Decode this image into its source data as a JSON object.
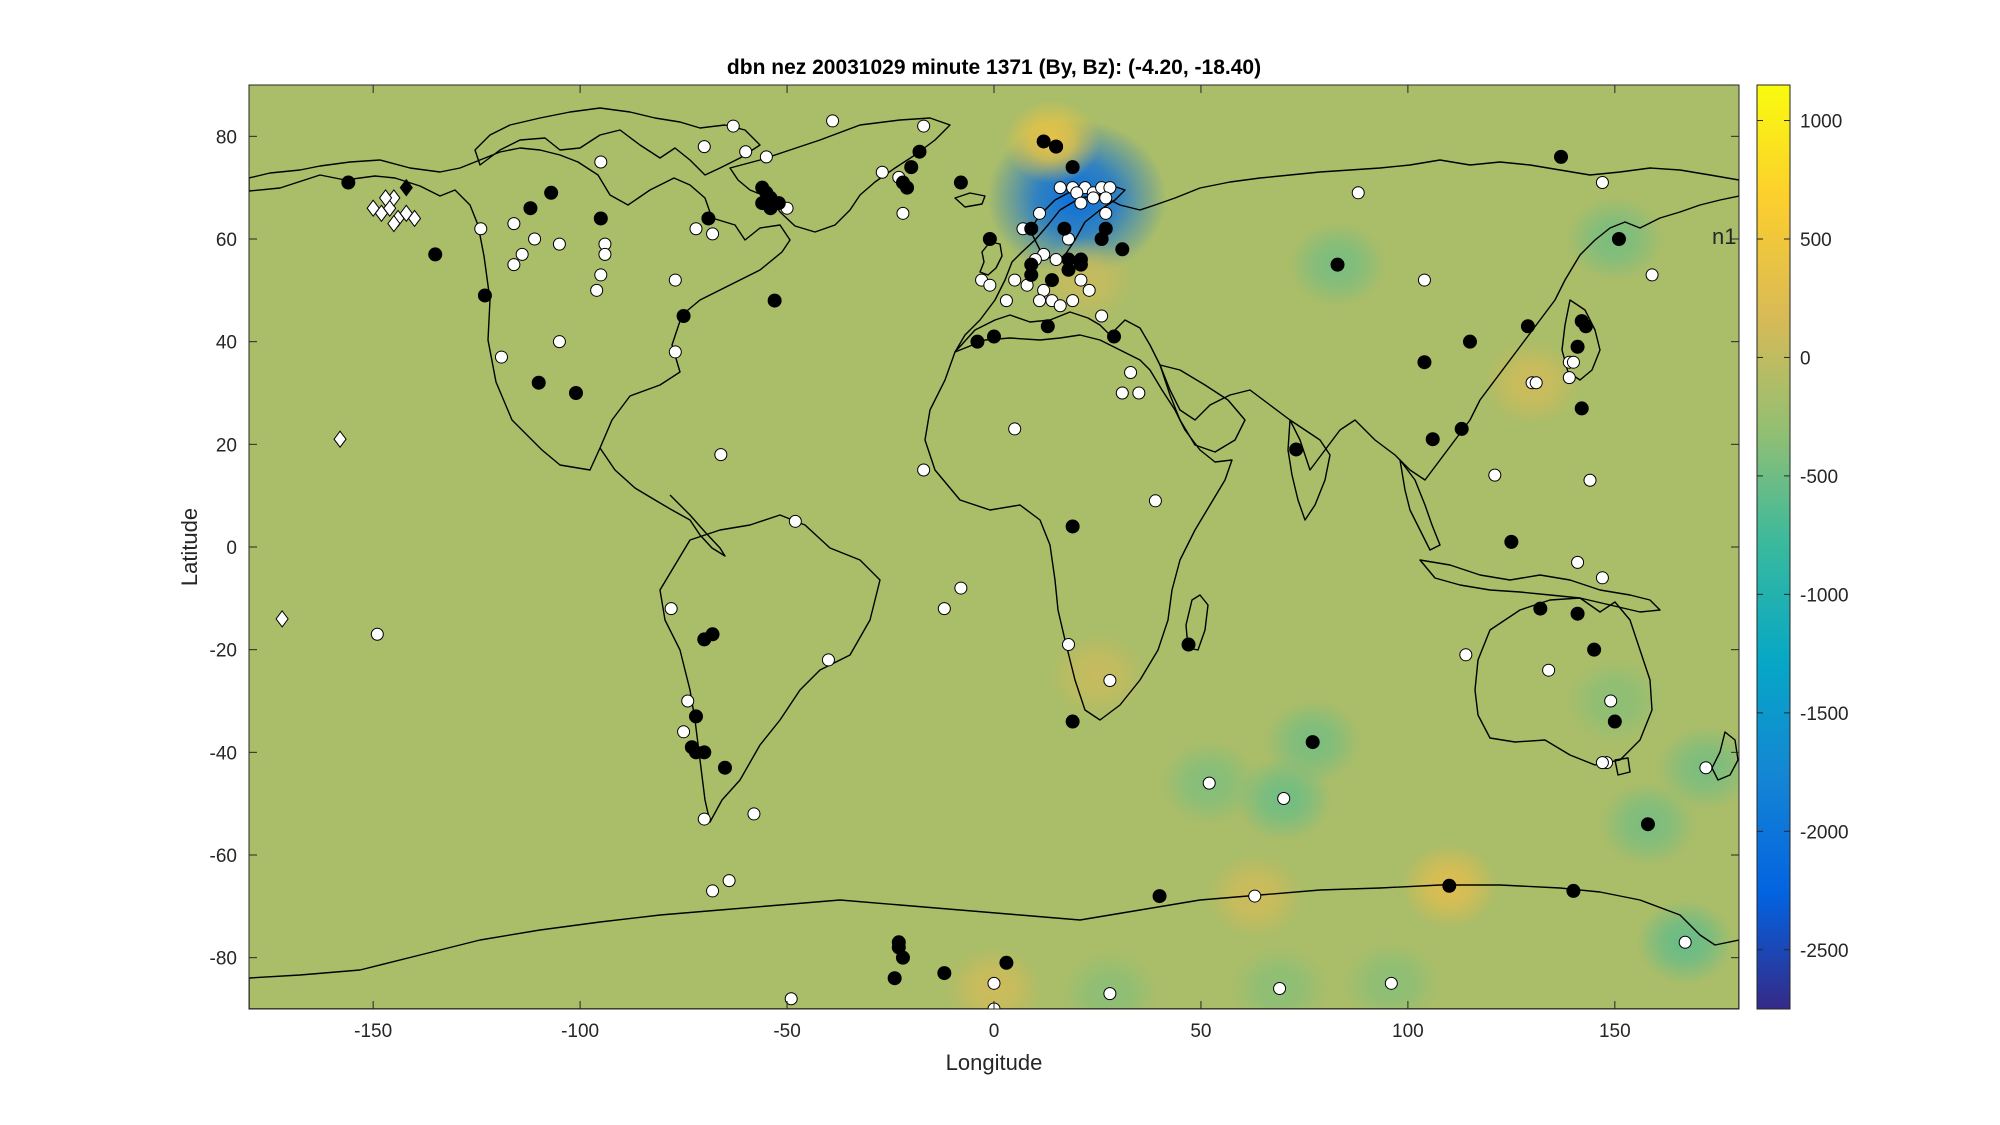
{
  "chart_data": {
    "type": "heatmap",
    "title": "dbn nez 20031029 minute 1371    (By, Bz): (-4.20, -18.40)",
    "xlabel": "Longitude",
    "ylabel": "Latitude",
    "xlim": [
      -180,
      180
    ],
    "ylim": [
      -90,
      90
    ],
    "xticks": [
      -150,
      -100,
      -50,
      0,
      50,
      100,
      150
    ],
    "yticks": [
      80,
      60,
      40,
      20,
      0,
      -20,
      -40,
      -60,
      -80
    ],
    "colorbar": {
      "limits": [
        -2750,
        1150
      ],
      "ticks": [
        1000,
        500,
        0,
        -500,
        -1000,
        -1500,
        -2000,
        -2500
      ],
      "colormap": "parula",
      "background_value": -150
    },
    "annotation": "n1",
    "field_anomalies": [
      {
        "lon": 20,
        "lat": 68,
        "value": -2100
      },
      {
        "lon": 14,
        "lat": 79,
        "value": 400
      },
      {
        "lon": 22,
        "lat": 52,
        "value": 50
      },
      {
        "lon": 83,
        "lat": 55,
        "value": -450
      },
      {
        "lon": 150,
        "lat": 60,
        "value": -450
      },
      {
        "lon": 130,
        "lat": 32,
        "value": 100
      },
      {
        "lon": 52,
        "lat": -46,
        "value": -400
      },
      {
        "lon": 70,
        "lat": -49,
        "value": -500
      },
      {
        "lon": 77,
        "lat": -38,
        "value": -450
      },
      {
        "lon": 158,
        "lat": -54,
        "value": -450
      },
      {
        "lon": 110,
        "lat": -66,
        "value": 250
      },
      {
        "lon": 63,
        "lat": -68,
        "value": 100
      },
      {
        "lon": 167,
        "lat": -77,
        "value": -550
      },
      {
        "lon": 172,
        "lat": -43,
        "value": -450
      },
      {
        "lon": 28,
        "lat": -87,
        "value": -350
      },
      {
        "lon": 69,
        "lat": -86,
        "value": -350
      },
      {
        "lon": 96,
        "lat": -85,
        "value": -350
      },
      {
        "lon": 0,
        "lat": -86,
        "value": 100
      },
      {
        "lon": 150,
        "lat": -30,
        "value": -350
      },
      {
        "lon": 25,
        "lat": -25,
        "value": 50
      }
    ],
    "stations_white": [
      [
        -63,
        82
      ],
      [
        -39,
        83
      ],
      [
        -70,
        78
      ],
      [
        -60,
        77
      ],
      [
        -95,
        75
      ],
      [
        -55,
        76
      ],
      [
        -17,
        82
      ],
      [
        -27,
        73
      ],
      [
        -23,
        72
      ],
      [
        -50,
        66
      ],
      [
        -22,
        65
      ],
      [
        -116,
        63
      ],
      [
        -124,
        62
      ],
      [
        -111,
        60
      ],
      [
        -105,
        59
      ],
      [
        -94,
        59
      ],
      [
        -94,
        57
      ],
      [
        -114,
        57
      ],
      [
        -116,
        55
      ],
      [
        -95,
        53
      ],
      [
        -77,
        52
      ],
      [
        -96,
        50
      ],
      [
        -68,
        61
      ],
      [
        -72,
        62
      ],
      [
        -119,
        37
      ],
      [
        -105,
        40
      ],
      [
        -77,
        38
      ],
      [
        -66,
        18
      ],
      [
        -48,
        5
      ],
      [
        -17,
        15
      ],
      [
        -8,
        -8
      ],
      [
        -12,
        -12
      ],
      [
        -78,
        -12
      ],
      [
        -40,
        -22
      ],
      [
        -74,
        -30
      ],
      [
        -75,
        -36
      ],
      [
        -70,
        -53
      ],
      [
        -58,
        -52
      ],
      [
        -68,
        -67
      ],
      [
        -64,
        -65
      ],
      [
        -49,
        -88
      ],
      [
        -149,
        -17
      ],
      [
        16,
        70
      ],
      [
        19,
        70
      ],
      [
        22,
        70
      ],
      [
        24,
        69
      ],
      [
        26,
        70
      ],
      [
        28,
        70
      ],
      [
        20,
        69
      ],
      [
        24,
        68
      ],
      [
        27,
        68
      ],
      [
        21,
        67
      ],
      [
        27,
        65
      ],
      [
        11,
        65
      ],
      [
        7,
        62
      ],
      [
        12,
        57
      ],
      [
        15,
        56
      ],
      [
        10,
        56
      ],
      [
        18,
        60
      ],
      [
        -3,
        52
      ],
      [
        5,
        52
      ],
      [
        -1,
        51
      ],
      [
        8,
        51
      ],
      [
        14,
        52
      ],
      [
        21,
        52
      ],
      [
        12,
        50
      ],
      [
        14,
        48
      ],
      [
        23,
        50
      ],
      [
        11,
        48
      ],
      [
        16,
        47
      ],
      [
        19,
        48
      ],
      [
        3,
        48
      ],
      [
        26,
        45
      ],
      [
        33,
        34
      ],
      [
        31,
        30
      ],
      [
        35,
        30
      ],
      [
        39,
        9
      ],
      [
        5,
        23
      ],
      [
        18,
        -19
      ],
      [
        28,
        -26
      ],
      [
        52,
        -46
      ],
      [
        70,
        -49
      ],
      [
        63,
        -68
      ],
      [
        28,
        -87
      ],
      [
        69,
        -86
      ],
      [
        96,
        -85
      ],
      [
        0,
        -85
      ],
      [
        0,
        -90
      ],
      [
        88,
        69
      ],
      [
        104,
        52
      ],
      [
        130,
        32
      ],
      [
        131,
        32
      ],
      [
        139,
        36
      ],
      [
        140,
        36
      ],
      [
        139,
        33
      ],
      [
        159,
        53
      ],
      [
        147,
        71
      ],
      [
        121,
        14
      ],
      [
        144,
        13
      ],
      [
        141,
        -3
      ],
      [
        147,
        -6
      ],
      [
        114,
        -21
      ],
      [
        134,
        -24
      ],
      [
        149,
        -30
      ],
      [
        148,
        -42
      ],
      [
        147,
        -42
      ],
      [
        172,
        -43
      ],
      [
        167,
        -77
      ]
    ],
    "stations_black": [
      [
        -156,
        71
      ],
      [
        -112,
        66
      ],
      [
        -107,
        69
      ],
      [
        -95,
        64
      ],
      [
        -69,
        64
      ],
      [
        -56,
        70
      ],
      [
        -55,
        69
      ],
      [
        -56,
        67
      ],
      [
        -54,
        68
      ],
      [
        -54,
        66
      ],
      [
        -52,
        67
      ],
      [
        -22,
        71
      ],
      [
        -18,
        77
      ],
      [
        -20,
        74
      ],
      [
        -21,
        70
      ],
      [
        -8,
        71
      ],
      [
        -135,
        57
      ],
      [
        -123,
        49
      ],
      [
        -75,
        45
      ],
      [
        -53,
        48
      ],
      [
        -110,
        32
      ],
      [
        -101,
        30
      ],
      [
        -70,
        -18
      ],
      [
        -68,
        -17
      ],
      [
        -72,
        -33
      ],
      [
        -73,
        -39
      ],
      [
        -72,
        -40
      ],
      [
        -70,
        -40
      ],
      [
        -65,
        -43
      ],
      [
        -23,
        -77
      ],
      [
        -23,
        -78
      ],
      [
        -22,
        -80
      ],
      [
        -24,
        -84
      ],
      [
        -12,
        -83
      ],
      [
        3,
        -81
      ],
      [
        12,
        79
      ],
      [
        15,
        78
      ],
      [
        15,
        78
      ],
      [
        19,
        74
      ],
      [
        -1,
        60
      ],
      [
        9,
        62
      ],
      [
        17,
        62
      ],
      [
        27,
        62
      ],
      [
        26,
        60
      ],
      [
        31,
        58
      ],
      [
        18,
        56
      ],
      [
        21,
        56
      ],
      [
        9,
        55
      ],
      [
        9,
        53
      ],
      [
        18,
        54
      ],
      [
        21,
        55
      ],
      [
        14,
        52
      ],
      [
        -4,
        40
      ],
      [
        0,
        41
      ],
      [
        13,
        43
      ],
      [
        29,
        41
      ],
      [
        19,
        4
      ],
      [
        19,
        -34
      ],
      [
        47,
        -19
      ],
      [
        40,
        -68
      ],
      [
        77,
        -38
      ],
      [
        83,
        55
      ],
      [
        73,
        19
      ],
      [
        110,
        -66
      ],
      [
        140,
        -67
      ],
      [
        158,
        -54
      ],
      [
        137,
        76
      ],
      [
        151,
        60
      ],
      [
        129,
        43
      ],
      [
        142,
        44
      ],
      [
        143,
        43
      ],
      [
        115,
        40
      ],
      [
        141,
        39
      ],
      [
        104,
        36
      ],
      [
        113,
        23
      ],
      [
        106,
        21
      ],
      [
        142,
        27
      ],
      [
        125,
        1
      ],
      [
        132,
        -12
      ],
      [
        141,
        -13
      ],
      [
        145,
        -20
      ],
      [
        150,
        -34
      ]
    ],
    "diamonds_white": [
      [
        -150,
        66
      ],
      [
        -148,
        65
      ],
      [
        -146,
        66
      ],
      [
        -145,
        68
      ],
      [
        -144,
        64
      ],
      [
        -142,
        65
      ],
      [
        -140,
        64
      ],
      [
        -145,
        63
      ],
      [
        -147,
        68
      ],
      [
        -158,
        21
      ],
      [
        -172,
        -14
      ]
    ],
    "diamonds_black": [
      [
        -142,
        70
      ]
    ]
  }
}
